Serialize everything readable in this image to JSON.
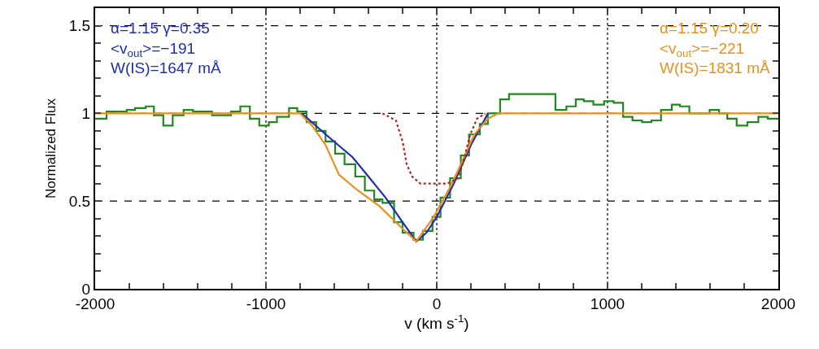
{
  "chart_data": {
    "type": "line",
    "xlabel": "v (km s$^{-1}$)",
    "ylabel": "Normalized Flux",
    "xlim": [
      -2000,
      2000
    ],
    "ylim": [
      0,
      1.6
    ],
    "xticks": [
      -2000,
      {
        "value": -1800,
        "label": null
      },
      {
        "value": -1600,
        "label": null
      },
      {
        "value": -1400,
        "label": null
      },
      {
        "value": -1200,
        "label": null
      },
      -1000,
      {
        "value": -800,
        "label": null
      },
      {
        "value": -600,
        "label": null
      },
      {
        "value": -400,
        "label": null
      },
      {
        "value": -200,
        "label": null
      },
      0,
      {
        "value": 200,
        "label": null
      },
      {
        "value": 400,
        "label": null
      },
      {
        "value": 600,
        "label": null
      },
      {
        "value": 800,
        "label": null
      },
      1000,
      {
        "value": 1200,
        "label": null
      },
      {
        "value": 1400,
        "label": null
      },
      {
        "value": 1600,
        "label": null
      },
      {
        "value": 1800,
        "label": null
      },
      2000
    ],
    "yticks": [
      0,
      {
        "value": 0.1,
        "label": null
      },
      {
        "value": 0.2,
        "label": null
      },
      {
        "value": 0.3,
        "label": null
      },
      {
        "value": 0.4,
        "label": null
      },
      0.5,
      {
        "value": 0.6,
        "label": null
      },
      {
        "value": 0.7,
        "label": null
      },
      {
        "value": 0.8,
        "label": null
      },
      {
        "value": 0.9,
        "label": null
      },
      1,
      {
        "value": 1.1,
        "label": null
      },
      {
        "value": 1.2,
        "label": null
      },
      {
        "value": 1.3,
        "label": null
      },
      {
        "value": 1.4,
        "label": null
      },
      1.5
    ],
    "grid": true,
    "annotations": [
      "α=1.15 γ=0.35\n<v$_{out}$>=−191\nW(IS)=1647 mÅ",
      "α=1.15 γ=0.20\n<v$_{out}$>=−221\nW(IS)=1831 mÅ"
    ],
    "series": [
      {
        "type": "step",
        "color": "#1e8a1e",
        "x": [
          -2000,
          -1933,
          -1815,
          -1767,
          -1704,
          -1656,
          -1601,
          -1546,
          -1482,
          -1427,
          -1316,
          -1205,
          -1150,
          -1094,
          -1039,
          -983,
          -936,
          -865,
          -817,
          -762,
          -706,
          -651,
          -595,
          -540,
          -477,
          -421,
          -366,
          -318,
          -250,
          -200,
          -136,
          -81,
          -25,
          22,
          78,
          141,
          189,
          252,
          299,
          371,
          423,
          695,
          759,
          814,
          861,
          917,
          980,
          1036,
          1091,
          1146,
          1202,
          1257,
          1313,
          1376,
          1424,
          1479,
          1598,
          1653,
          1701,
          1756,
          1819,
          1883,
          1938,
          2000
        ],
        "values": [
          0.97,
          1.01,
          1.02,
          1.03,
          1.04,
          0.99,
          0.93,
          0.99,
          1.02,
          1.01,
          0.99,
          1.01,
          1.04,
          0.97,
          0.93,
          0.95,
          0.98,
          1.03,
          1.01,
          0.95,
          0.9,
          0.84,
          0.77,
          0.71,
          0.64,
          0.56,
          0.51,
          0.49,
          0.38,
          0.32,
          0.28,
          0.33,
          0.41,
          0.52,
          0.63,
          0.76,
          0.88,
          0.94,
          1.0,
          1.08,
          1.11,
          1.02,
          1.04,
          1.08,
          1.07,
          1.05,
          1.07,
          1.06,
          0.98,
          0.96,
          0.95,
          0.96,
          1.02,
          1.05,
          1.04,
          1.0,
          1.02,
          1.0,
          0.97,
          0.93,
          0.95,
          0.98,
          0.97,
          0.97
        ]
      },
      {
        "color": "#1f2fb0",
        "x": [
          -790,
          -650,
          -493,
          -400,
          -300,
          -200,
          -120,
          -60,
          0,
          100,
          200,
          300
        ],
        "values": [
          1.0,
          0.88,
          0.75,
          0.64,
          0.52,
          0.38,
          0.27,
          0.32,
          0.41,
          0.6,
          0.82,
          1.0
        ]
      },
      {
        "color": "#e8901e",
        "x": [
          -2000,
          -800,
          -730,
          -651,
          -572,
          -461,
          -334,
          -208,
          -120,
          -18,
          78,
          141,
          220,
          299,
          361,
          2000
        ],
        "values": [
          1.0,
          1.0,
          0.93,
          0.82,
          0.65,
          0.56,
          0.47,
          0.35,
          0.27,
          0.41,
          0.58,
          0.71,
          0.88,
          0.97,
          1.0,
          1.0
        ]
      },
      {
        "color": "#b22222",
        "line_style": "dotted",
        "x": [
          -318,
          -239,
          -200,
          -176,
          -144,
          -96,
          62,
          125,
          157,
          196,
          236,
          284
        ],
        "values": [
          1.0,
          0.96,
          0.84,
          0.71,
          0.64,
          0.6,
          0.6,
          0.63,
          0.73,
          0.88,
          0.97,
          1.0
        ]
      }
    ]
  }
}
